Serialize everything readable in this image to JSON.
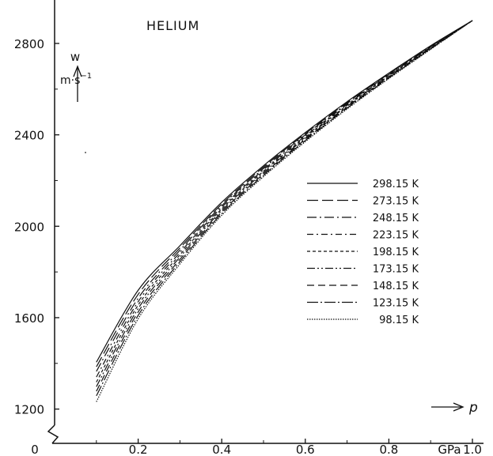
{
  "chart_data": {
    "type": "line",
    "title": "HELIUM",
    "ylabel": "w",
    "yunit": "m·s",
    "yunit_exp": "−1",
    "xlabel": "p",
    "xunit": "GPa",
    "xlim": [
      0,
      1.0
    ],
    "ylim": [
      1050,
      2990
    ],
    "xticks": [
      0.2,
      0.4,
      0.6,
      0.8,
      1.0
    ],
    "xtick_labels": [
      "0.2",
      "0.4",
      "0.6",
      "0.8",
      "1.0"
    ],
    "yticks": [
      1200,
      1600,
      2000,
      2400,
      2800
    ],
    "ytick_labels": [
      "1200",
      "1600",
      "2000",
      "2400",
      "2800"
    ],
    "origin_label": "0",
    "x": [
      0.1,
      0.2,
      0.3,
      0.4,
      0.5,
      0.6,
      0.7,
      0.8,
      0.9,
      1.0
    ],
    "series": [
      {
        "name": "298.15 K",
        "dash": "",
        "values": [
          1405,
          1720,
          1915,
          2105,
          2265,
          2410,
          2545,
          2670,
          2790,
          2900
        ]
      },
      {
        "name": "273.15 K",
        "dash": "14 5",
        "values": [
          1385,
          1702,
          1905,
          2097,
          2259,
          2405,
          2541,
          2667,
          2788,
          2900
        ]
      },
      {
        "name": "248.15 K",
        "dash": "12 4 2 4",
        "values": [
          1365,
          1685,
          1895,
          2090,
          2253,
          2400,
          2537,
          2664,
          2786,
          2900
        ]
      },
      {
        "name": "223.15 K",
        "dash": "8 4 2 4",
        "values": [
          1340,
          1670,
          1885,
          2083,
          2247,
          2395,
          2533,
          2661,
          2784,
          2900
        ]
      },
      {
        "name": "198.15 K",
        "dash": "4 3",
        "values": [
          1318,
          1655,
          1875,
          2076,
          2241,
          2390,
          2529,
          2658,
          2782,
          2900
        ]
      },
      {
        "name": "173.15 K",
        "dash": "10 3 2 3 2 3",
        "values": [
          1298,
          1640,
          1865,
          2069,
          2235,
          2385,
          2525,
          2655,
          2780,
          2900
        ]
      },
      {
        "name": "148.15 K",
        "dash": "9 5",
        "values": [
          1278,
          1625,
          1855,
          2062,
          2229,
          2380,
          2521,
          2652,
          2778,
          2900
        ]
      },
      {
        "name": "123.15 K",
        "dash": "14 3 2 3",
        "values": [
          1258,
          1610,
          1845,
          2055,
          2223,
          2375,
          2517,
          2649,
          2776,
          2900
        ]
      },
      {
        "name": "98.15 K",
        "dash": "1.5 1.5",
        "values": [
          1232,
          1595,
          1835,
          2048,
          2217,
          2370,
          2513,
          2646,
          2774,
          2900
        ]
      }
    ]
  }
}
